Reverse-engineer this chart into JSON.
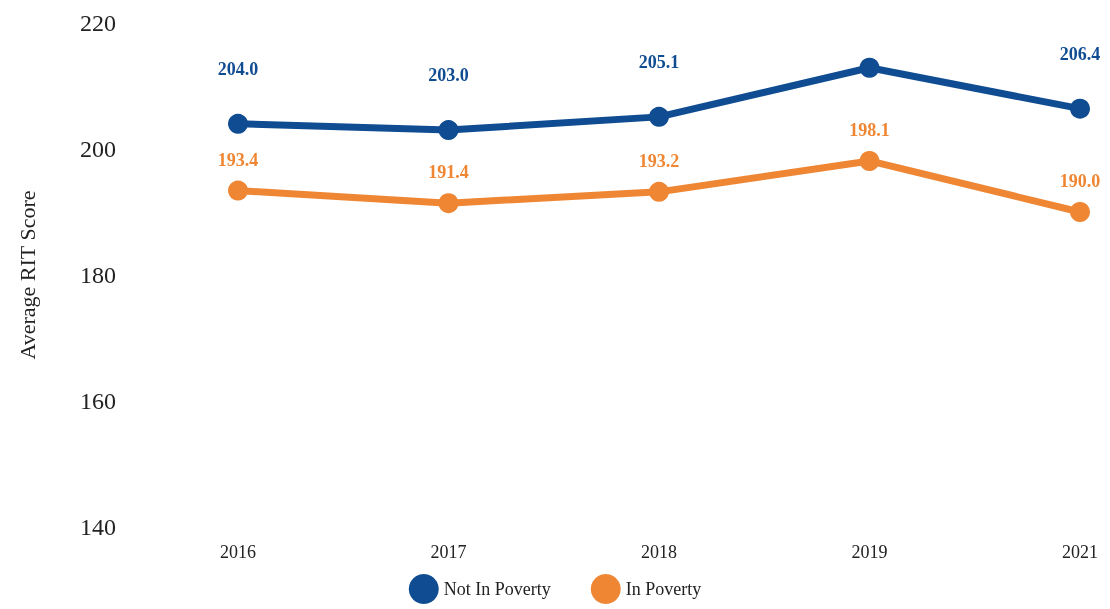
{
  "chart_data": {
    "type": "line",
    "ylabel": "Average RIT Score",
    "categories": [
      "2016",
      "2017",
      "2018",
      "2019",
      "2021"
    ],
    "ylim": [
      140,
      220
    ],
    "yticks": [
      140,
      160,
      180,
      200,
      220
    ],
    "legend": "bottom",
    "marker": "circle",
    "line_style": "solid",
    "series": [
      {
        "name": "Not In Poverty",
        "color": "#0f4c92",
        "values": [
          204.0,
          203.0,
          205.1,
          212.9,
          206.4
        ],
        "value_labels": [
          "204.0",
          "203.0",
          "205.1",
          null,
          "206.4"
        ]
      },
      {
        "name": "In Poverty",
        "color": "#ef8633",
        "values": [
          193.4,
          191.4,
          193.2,
          198.1,
          190.0
        ],
        "value_labels": [
          "193.4",
          "191.4",
          "193.2",
          "198.1",
          "190.0"
        ]
      }
    ]
  }
}
